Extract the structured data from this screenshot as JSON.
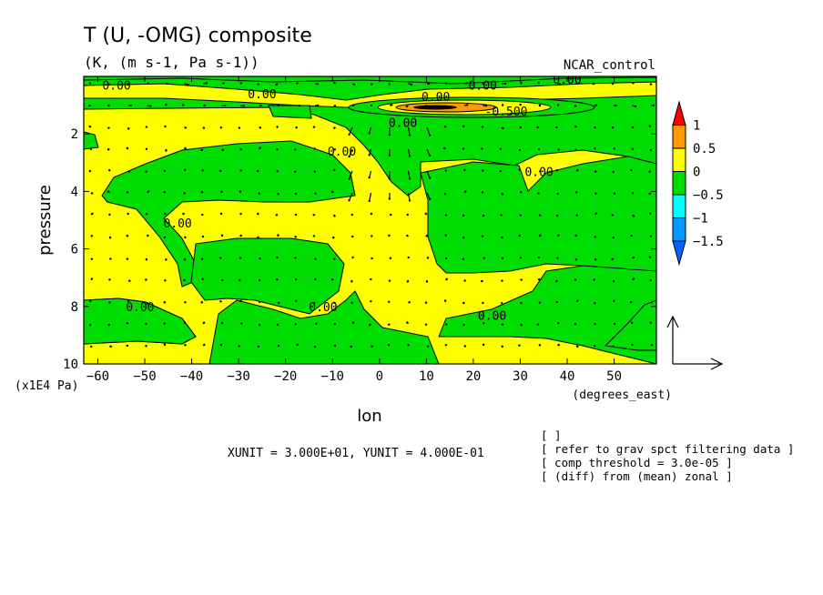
{
  "chart_data": {
    "type": "contour",
    "title": "T (U, -OMG) composite",
    "subtitle": "(K, (m s-1, Pa s-1))",
    "label_right": "NCAR_control",
    "xlabel": "lon",
    "x_units": "(degrees_east)",
    "ylabel": "pressure",
    "y_units": "(x1E4 Pa)",
    "xlim": [
      -63,
      59
    ],
    "ylim": [
      10,
      0
    ],
    "x_ticks": [
      -60,
      -50,
      -40,
      -30,
      -20,
      -10,
      0,
      10,
      20,
      30,
      40,
      50
    ],
    "y_ticks": [
      2,
      4,
      6,
      8,
      10
    ],
    "colorbar": {
      "levels": [
        -1.5,
        -1,
        -0.5,
        0,
        0.5,
        1
      ],
      "labels": [
        "1",
        "0.5",
        "0",
        "−0.5",
        "−1",
        "−1.5"
      ],
      "colors": [
        "#ff0000",
        "#ff9900",
        "#ffff00",
        "#00dd00",
        "#00ffff",
        "#0099ff",
        "#0066ff"
      ]
    },
    "contour_labels": [
      {
        "text": "0.00",
        "x": -56,
        "y": 0.3
      },
      {
        "text": "0.00",
        "x": -25,
        "y": 0.6
      },
      {
        "text": "0.00",
        "x": 12,
        "y": 0.7
      },
      {
        "text": "0.00",
        "x": 22,
        "y": 0.3
      },
      {
        "text": "0.00",
        "x": 40,
        "y": 0.1
      },
      {
        "text": "0.00",
        "x": 5,
        "y": 1.6
      },
      {
        "text": "-0.500",
        "x": 27,
        "y": 1.2
      },
      {
        "text": "0.00",
        "x": -8,
        "y": 2.6
      },
      {
        "text": "0.00",
        "x": 34,
        "y": 3.3
      },
      {
        "text": "0.00",
        "x": -43,
        "y": 5.1
      },
      {
        "text": "0.00",
        "x": -51,
        "y": 8.0
      },
      {
        "text": "0.00",
        "x": -12,
        "y": 8.0
      },
      {
        "text": "0.00",
        "x": 24,
        "y": 8.3
      }
    ],
    "vector_reference": {
      "xunit_label": "XUNIT = 3.000E+01, YUNIT = 4.000E-01"
    },
    "notes": [
      "[  ]",
      "[ refer to grav spct filtering data ]",
      "[ comp threshold = 3.0e-05 ]",
      "[ (diff) from (mean) zonal ]"
    ]
  }
}
